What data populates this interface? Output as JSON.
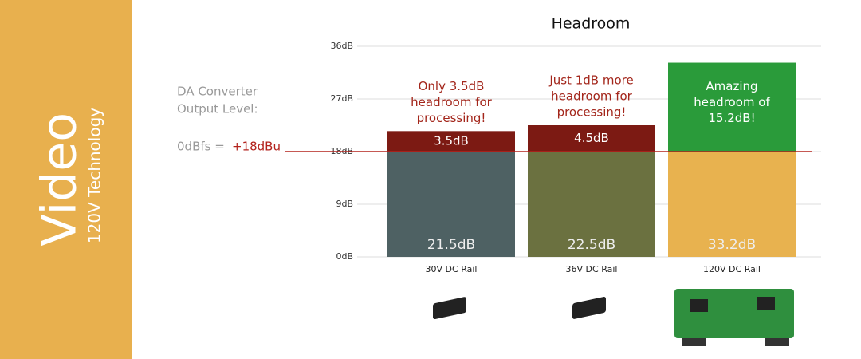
{
  "sidebar": {
    "title": "Video",
    "subtitle": "120V Technology"
  },
  "chart_data": {
    "type": "stacked_bar",
    "title": "Headroom",
    "categories": [
      "30V DC Rail",
      "36V DC Rail",
      "120V DC Rail"
    ],
    "series": [
      {
        "colors": [
          "#4e6163",
          "#6b7140",
          "#e8b24f"
        ],
        "values": [
          18,
          18,
          18
        ]
      },
      {
        "colors": [
          "#7c1a13",
          "#7c1a13",
          "#2a9b3a"
        ],
        "values": [
          3.5,
          4.5,
          15.2
        ],
        "value_labels": [
          "3.5dB",
          "4.5dB",
          null
        ]
      }
    ],
    "totals": [
      21.5,
      22.5,
      33.2
    ],
    "total_labels": [
      "21.5dB",
      "22.5dB",
      "33.2dB"
    ],
    "annotations": [
      [
        "Only 3.5dB",
        "headroom for",
        "processing!"
      ],
      [
        "Just 1dB more",
        "headroom for",
        "processing!"
      ],
      [
        "Amazing",
        "headroom of",
        "15.2dB!"
      ]
    ],
    "annotation_colors": [
      "#a3261b",
      "#a3261b",
      "#ffffff"
    ],
    "ylim": [
      0,
      36
    ],
    "yticks": [
      {
        "value": 0,
        "label": "0dB"
      },
      {
        "value": 9,
        "label": "9dB"
      },
      {
        "value": 18,
        "label": "18dB"
      },
      {
        "value": 27,
        "label": "27dB"
      },
      {
        "value": 36,
        "label": "36dB"
      }
    ],
    "grid": true,
    "reference": {
      "value": 18,
      "prefix": "0dBfs =",
      "label": "+18dBu",
      "color": "#b3221c"
    },
    "side_note": [
      "DA Converter",
      "Output Level:"
    ]
  }
}
